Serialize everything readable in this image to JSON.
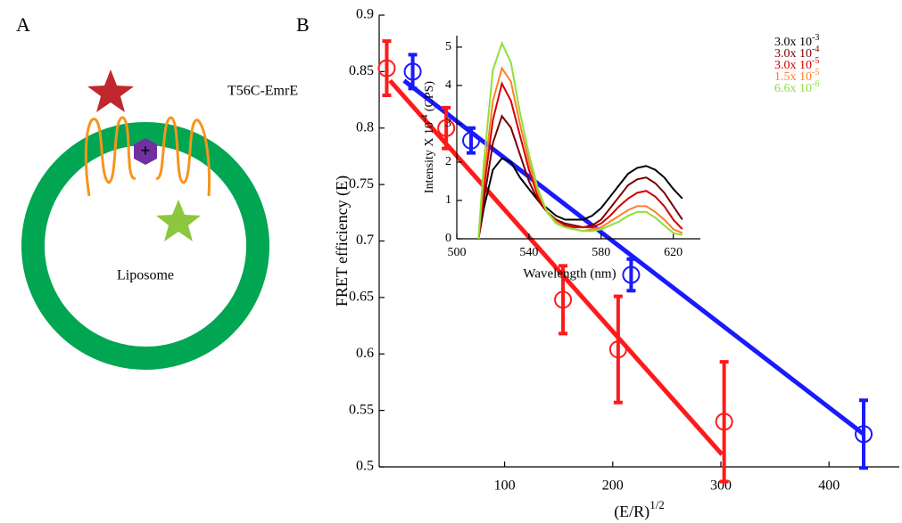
{
  "panel_a": {
    "label": "A",
    "protein": "T56C-EmrE",
    "liposome": "Liposome",
    "charge": "+"
  },
  "panel_b": {
    "label": "B"
  },
  "chart_data": [
    {
      "type": "scatter",
      "ylabel": "FRET efficiency (E)",
      "xlabel": {
        "base": "(E/R)",
        "sup": "1/2"
      },
      "xlim": [
        -16,
        465
      ],
      "xticks": [
        100,
        200,
        300,
        400
      ],
      "ylim": [
        0.5,
        0.9
      ],
      "yticks": [
        0.5,
        0.55,
        0.6,
        0.65,
        0.7,
        0.75,
        0.8,
        0.85,
        0.9
      ],
      "series": [
        {
          "color": "#ff1a1a",
          "x": [
            -9,
            46,
            154,
            205,
            303
          ],
          "values": [
            0.853,
            0.8,
            0.648,
            0.604,
            0.54
          ],
          "errors": [
            0.024,
            0.018,
            0.03,
            0.047,
            0.053
          ],
          "fit": {
            "x": [
              -6,
              301
            ],
            "y": [
              0.842,
              0.511
            ]
          }
        },
        {
          "color": "#1a1aff",
          "x": [
            15,
            69,
            217,
            432
          ],
          "values": [
            0.85,
            0.789,
            0.67,
            0.529
          ],
          "errors": [
            0.015,
            0.011,
            0.014,
            0.03
          ],
          "fit": {
            "x": [
              7,
              432
            ],
            "y": [
              0.842,
              0.529
            ]
          }
        }
      ]
    },
    {
      "type": "line",
      "ylabel": {
        "base": "Intensity X 10",
        "sup": "-4",
        "tail": " (CPS)"
      },
      "xlabel": "Wavelength (nm)",
      "xlim": [
        500,
        635
      ],
      "xticks": [
        500,
        540,
        580,
        620
      ],
      "ylim": [
        0,
        5.3
      ],
      "yticks": [
        0,
        1,
        2,
        3,
        4,
        5
      ],
      "x": [
        512,
        515,
        520,
        525,
        530,
        535,
        540,
        545,
        550,
        555,
        560,
        565,
        570,
        575,
        580,
        585,
        590,
        595,
        600,
        605,
        610,
        615,
        620,
        625
      ],
      "series": [
        {
          "name": {
            "base": "3.0x 10",
            "sup": "-3"
          },
          "color": "#000000",
          "values": [
            0,
            0.8,
            1.8,
            2.1,
            2.0,
            1.6,
            1.3,
            1.0,
            0.8,
            0.6,
            0.5,
            0.5,
            0.5,
            0.6,
            0.8,
            1.1,
            1.4,
            1.7,
            1.85,
            1.9,
            1.8,
            1.6,
            1.3,
            1.05
          ]
        },
        {
          "name": {
            "base": "3.0x 10",
            "sup": "-4"
          },
          "color": "#7a0000",
          "values": [
            0,
            1.0,
            2.5,
            3.2,
            2.9,
            2.2,
            1.5,
            1.0,
            0.7,
            0.5,
            0.4,
            0.35,
            0.3,
            0.35,
            0.5,
            0.8,
            1.1,
            1.4,
            1.55,
            1.6,
            1.45,
            1.2,
            0.85,
            0.5
          ]
        },
        {
          "name": {
            "base": "3.0x 10",
            "sup": "-5"
          },
          "color": "#d40000",
          "values": [
            0,
            1.3,
            3.1,
            4.05,
            3.6,
            2.7,
            1.8,
            1.1,
            0.7,
            0.45,
            0.35,
            0.3,
            0.3,
            0.3,
            0.4,
            0.6,
            0.85,
            1.05,
            1.2,
            1.25,
            1.1,
            0.85,
            0.5,
            0.25
          ]
        },
        {
          "name": {
            "base": "1.5x 10",
            "sup": "-5"
          },
          "color": "#ff7f27",
          "values": [
            0,
            1.6,
            3.6,
            4.45,
            4.1,
            3.0,
            2.0,
            1.2,
            0.7,
            0.45,
            0.3,
            0.25,
            0.2,
            0.25,
            0.3,
            0.45,
            0.6,
            0.75,
            0.85,
            0.85,
            0.7,
            0.5,
            0.25,
            0.15
          ]
        },
        {
          "name": {
            "base": "6.6x 10",
            "sup": "-6"
          },
          "color": "#8ee03c",
          "values": [
            0,
            2.0,
            4.4,
            5.1,
            4.6,
            3.3,
            2.2,
            1.3,
            0.7,
            0.4,
            0.3,
            0.25,
            0.2,
            0.2,
            0.25,
            0.35,
            0.45,
            0.6,
            0.7,
            0.7,
            0.55,
            0.35,
            0.15,
            0.1
          ]
        }
      ]
    }
  ]
}
